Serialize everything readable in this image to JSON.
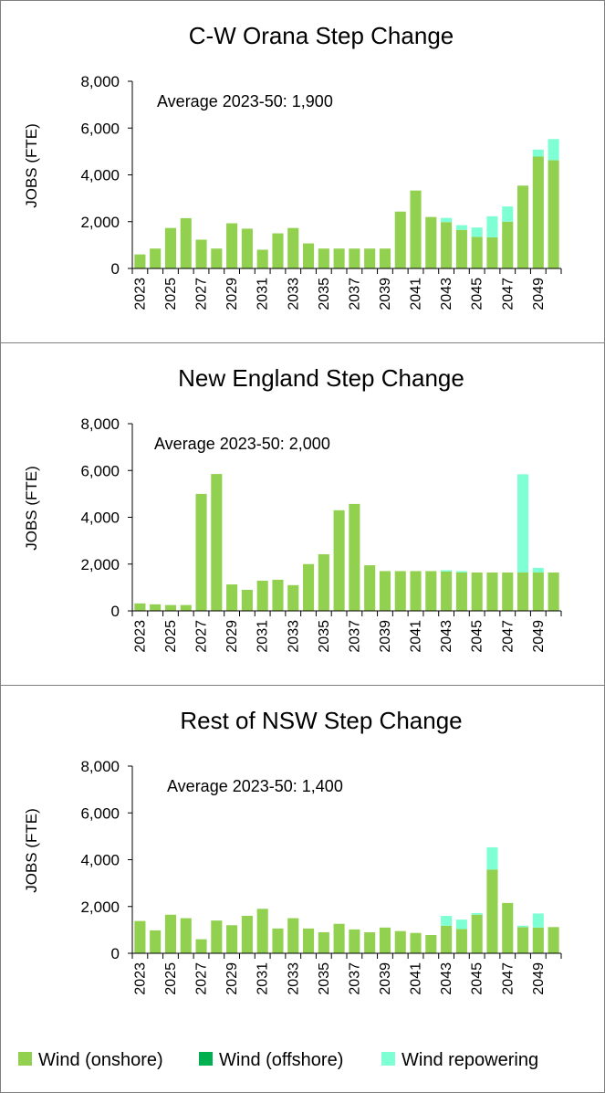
{
  "colors": {
    "onshore": "#92D050",
    "offshore": "#00B050",
    "repowering": "#7FFFD4",
    "axis": "#000000",
    "grid": "#D9D9D9",
    "frame": "#7F7F7F"
  },
  "legend": {
    "placement": "bottom",
    "items": [
      {
        "key": "onshore",
        "label": "Wind (onshore)"
      },
      {
        "key": "offshore",
        "label": "Wind (offshore)"
      },
      {
        "key": "repowering",
        "label": "Wind repowering"
      }
    ]
  },
  "chart_data": [
    {
      "type": "bar",
      "stacked": true,
      "title": "C-W Orana Step Change",
      "ylabel": "JOBS (FTE)",
      "xlabel": "",
      "ylim": [
        0,
        8000
      ],
      "yticks": [
        "0",
        "2,000",
        "4,000",
        "6,000",
        "8,000"
      ],
      "annotation": "Average 2023-50: 1,900",
      "grid": false,
      "categories": [
        2023,
        2024,
        2025,
        2026,
        2027,
        2028,
        2029,
        2030,
        2031,
        2032,
        2033,
        2034,
        2035,
        2036,
        2037,
        2038,
        2039,
        2040,
        2041,
        2042,
        2043,
        2044,
        2045,
        2046,
        2047,
        2048,
        2049,
        2050
      ],
      "x_tick_labels": [
        "2023",
        "2025",
        "2027",
        "2029",
        "2031",
        "2033",
        "2035",
        "2037",
        "2039",
        "2041",
        "2043",
        "2045",
        "2047",
        "2049"
      ],
      "series": [
        {
          "name": "Wind (onshore)",
          "key": "onshore",
          "values": [
            600,
            850,
            1730,
            2150,
            1230,
            850,
            1930,
            1700,
            800,
            1500,
            1730,
            1070,
            850,
            850,
            850,
            850,
            850,
            2430,
            3330,
            2200,
            1980,
            1650,
            1350,
            1330,
            2000,
            3540,
            4780,
            4630
          ]
        },
        {
          "name": "Wind (offshore)",
          "key": "offshore",
          "values": [
            0,
            0,
            0,
            0,
            0,
            0,
            0,
            0,
            0,
            0,
            0,
            0,
            0,
            0,
            0,
            0,
            0,
            0,
            0,
            0,
            0,
            0,
            0,
            0,
            0,
            0,
            0,
            0
          ]
        },
        {
          "name": "Wind repowering",
          "key": "repowering",
          "values": [
            0,
            0,
            0,
            0,
            0,
            0,
            0,
            0,
            0,
            0,
            0,
            0,
            0,
            0,
            0,
            0,
            0,
            0,
            0,
            0,
            180,
            200,
            400,
            900,
            650,
            0,
            300,
            900
          ]
        }
      ]
    },
    {
      "type": "bar",
      "stacked": true,
      "title": "New England Step Change",
      "ylabel": "JOBS (FTE)",
      "xlabel": "",
      "ylim": [
        0,
        8000
      ],
      "yticks": [
        "0",
        "2,000",
        "4,000",
        "6,000",
        "8,000"
      ],
      "annotation": "Average 2023-50: 2,000",
      "grid": false,
      "categories": [
        2023,
        2024,
        2025,
        2026,
        2027,
        2028,
        2029,
        2030,
        2031,
        2032,
        2033,
        2034,
        2035,
        2036,
        2037,
        2038,
        2039,
        2040,
        2041,
        2042,
        2043,
        2044,
        2045,
        2046,
        2047,
        2048,
        2049,
        2050
      ],
      "x_tick_labels": [
        "2023",
        "2025",
        "2027",
        "2029",
        "2031",
        "2033",
        "2035",
        "2037",
        "2039",
        "2041",
        "2043",
        "2045",
        "2047",
        "2049"
      ],
      "series": [
        {
          "name": "Wind (onshore)",
          "key": "onshore",
          "values": [
            320,
            280,
            250,
            250,
            5000,
            5850,
            1130,
            900,
            1290,
            1330,
            1100,
            2000,
            2420,
            4300,
            4570,
            1950,
            1700,
            1700,
            1700,
            1700,
            1680,
            1640,
            1640,
            1640,
            1640,
            1640,
            1640,
            1640
          ]
        },
        {
          "name": "Wind (offshore)",
          "key": "offshore",
          "values": [
            0,
            0,
            0,
            0,
            0,
            0,
            0,
            0,
            0,
            0,
            0,
            0,
            0,
            0,
            0,
            0,
            0,
            0,
            0,
            0,
            0,
            0,
            0,
            0,
            0,
            0,
            0,
            0
          ]
        },
        {
          "name": "Wind repowering",
          "key": "repowering",
          "values": [
            0,
            0,
            0,
            0,
            0,
            0,
            0,
            0,
            0,
            0,
            0,
            0,
            0,
            0,
            0,
            0,
            0,
            0,
            0,
            0,
            60,
            60,
            0,
            0,
            0,
            4200,
            200,
            0
          ]
        }
      ]
    },
    {
      "type": "bar",
      "stacked": true,
      "title": "Rest of NSW Step Change",
      "ylabel": "JOBS (FTE)",
      "xlabel": "",
      "ylim": [
        0,
        8000
      ],
      "yticks": [
        "0",
        "2,000",
        "4,000",
        "6,000",
        "8,000"
      ],
      "annotation": "Average 2023-50: 1,400",
      "grid": false,
      "categories": [
        2023,
        2024,
        2025,
        2026,
        2027,
        2028,
        2029,
        2030,
        2031,
        2032,
        2033,
        2034,
        2035,
        2036,
        2037,
        2038,
        2039,
        2040,
        2041,
        2042,
        2043,
        2044,
        2045,
        2046,
        2047,
        2048,
        2049,
        2050
      ],
      "x_tick_labels": [
        "2023",
        "2025",
        "2027",
        "2029",
        "2031",
        "2033",
        "2035",
        "2037",
        "2039",
        "2041",
        "2043",
        "2045",
        "2047",
        "2049"
      ],
      "series": [
        {
          "name": "Wind (onshore)",
          "key": "onshore",
          "values": [
            1380,
            980,
            1650,
            1500,
            600,
            1400,
            1200,
            1600,
            1900,
            1060,
            1500,
            1060,
            900,
            1260,
            1020,
            900,
            1100,
            950,
            870,
            780,
            1180,
            1040,
            1650,
            3580,
            2150,
            1120,
            1100,
            1120
          ]
        },
        {
          "name": "Wind (offshore)",
          "key": "offshore",
          "values": [
            0,
            0,
            0,
            0,
            0,
            0,
            0,
            0,
            0,
            0,
            0,
            0,
            0,
            0,
            0,
            0,
            0,
            0,
            0,
            0,
            0,
            0,
            0,
            0,
            0,
            0,
            0,
            0
          ]
        },
        {
          "name": "Wind repowering",
          "key": "repowering",
          "values": [
            0,
            0,
            0,
            0,
            0,
            0,
            0,
            0,
            0,
            0,
            0,
            0,
            0,
            0,
            0,
            0,
            0,
            0,
            0,
            0,
            420,
            400,
            70,
            950,
            0,
            60,
            600,
            0
          ]
        }
      ]
    }
  ]
}
